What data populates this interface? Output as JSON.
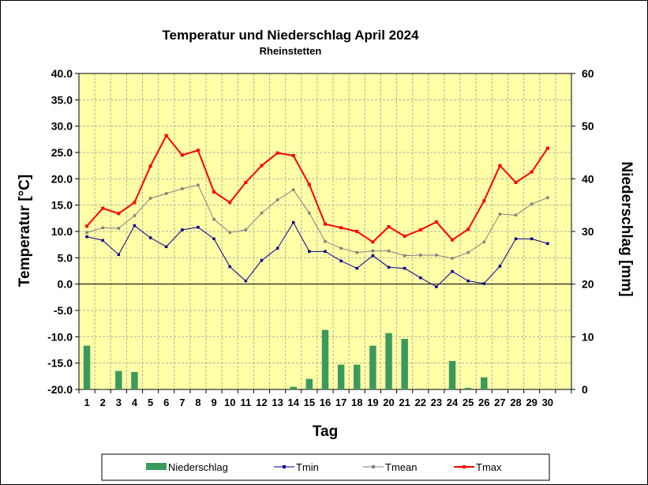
{
  "chart_data": {
    "type": "line",
    "title": "Temperatur und Niederschlag April 2024",
    "subtitle": "Rheinstetten",
    "xlabel": "Tag",
    "ylabel": "Temperatur [°C]",
    "y2label": "Niederschlag [mm]",
    "ylim": [
      -20,
      40
    ],
    "y2lim": [
      0,
      60
    ],
    "yticks": [
      "40.0",
      "35.0",
      "30.0",
      "25.0",
      "20.0",
      "15.0",
      "10.0",
      "5.0",
      "0.0",
      "-5.0",
      "-10.0",
      "-15.0",
      "-20.0"
    ],
    "y2ticks": [
      "60",
      "50",
      "40",
      "30",
      "20",
      "10",
      "0"
    ],
    "categories": [
      "1",
      "2",
      "3",
      "4",
      "5",
      "6",
      "7",
      "8",
      "9",
      "10",
      "11",
      "12",
      "13",
      "14",
      "15",
      "16",
      "17",
      "18",
      "19",
      "20",
      "21",
      "22",
      "23",
      "24",
      "25",
      "26",
      "27",
      "28",
      "29",
      "30"
    ],
    "grid": true,
    "legend_position": "bottom",
    "series": [
      {
        "name": "Niederschlag",
        "type": "bar",
        "axis": "right",
        "color": "#3a9a5b",
        "values": [
          8.3,
          0.1,
          3.5,
          3.3,
          0,
          0,
          0,
          0,
          0,
          0,
          0,
          0,
          0,
          0.5,
          2.0,
          11.3,
          4.7,
          4.7,
          8.3,
          10.7,
          9.6,
          0,
          0,
          5.4,
          0.3,
          2.3,
          0,
          0,
          0,
          0
        ]
      },
      {
        "name": "Tmin",
        "type": "line",
        "axis": "left",
        "color": "#00008b",
        "values": [
          9.0,
          8.3,
          5.6,
          11.1,
          8.8,
          7.1,
          10.3,
          10.8,
          8.6,
          3.3,
          0.6,
          4.5,
          6.8,
          11.7,
          6.2,
          6.2,
          4.4,
          3.0,
          5.4,
          3.2,
          3.0,
          1.2,
          -0.5,
          2.4,
          0.6,
          0.1,
          3.4,
          8.6,
          8.6,
          7.7
        ]
      },
      {
        "name": "Tmean",
        "type": "line",
        "axis": "left",
        "color": "#808080",
        "values": [
          9.8,
          10.7,
          10.6,
          13.0,
          16.3,
          17.2,
          18.1,
          18.8,
          12.3,
          9.8,
          10.3,
          13.5,
          16.0,
          17.9,
          13.5,
          8.1,
          6.8,
          6.0,
          6.3,
          6.3,
          5.4,
          5.5,
          5.5,
          4.9,
          6.0,
          8.0,
          13.3,
          13.1,
          15.2,
          16.4
        ]
      },
      {
        "name": "Tmax",
        "type": "line",
        "axis": "left",
        "color": "#ff0000",
        "values": [
          11.0,
          14.4,
          13.4,
          15.5,
          22.4,
          28.2,
          24.5,
          25.4,
          17.5,
          15.5,
          19.3,
          22.5,
          24.9,
          24.4,
          18.9,
          11.4,
          10.7,
          10.0,
          8.0,
          10.9,
          9.1,
          10.3,
          11.8,
          8.4,
          10.4,
          15.8,
          22.5,
          19.3,
          21.3,
          25.8
        ]
      }
    ]
  },
  "colors": {
    "plot_background": "#ffffa8",
    "grid": "#b0b0a0"
  }
}
